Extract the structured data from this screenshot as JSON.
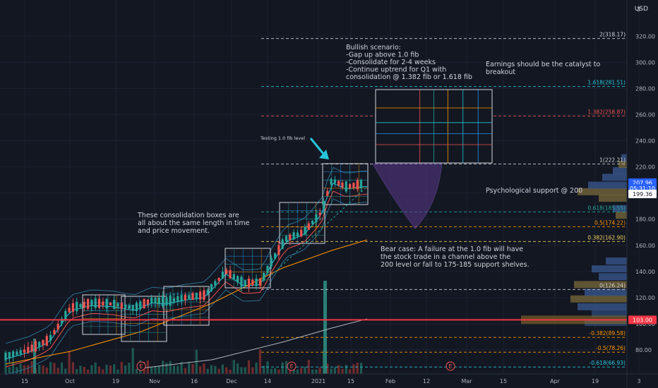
{
  "chart_data": {
    "type": "candlestick",
    "currency": "USD",
    "corner_label": "3",
    "y_ticks": [
      80,
      100,
      120,
      140,
      160,
      180,
      200,
      220,
      240,
      260,
      280,
      300,
      320
    ],
    "x_ticks": [
      "15",
      "Oct",
      "19",
      "Nov",
      "16",
      "Dec",
      "14",
      "2021",
      "15",
      "Feb",
      "12",
      "Mar",
      "15",
      "Apr",
      "19",
      "3"
    ],
    "fib_levels": [
      {
        "label": "2(318.17)",
        "value": 318.17,
        "color": "#d1d4dc"
      },
      {
        "label": "1.618(281.51)",
        "value": 281.51,
        "color": "#26c6da"
      },
      {
        "label": "1.382(258.87)",
        "value": 258.87,
        "color": "#ef5350"
      },
      {
        "label": "1(222.21)",
        "value": 222.21,
        "color": "#d1d4dc"
      },
      {
        "label": "0.618(185.55)",
        "value": 185.55,
        "color": "#26a69a"
      },
      {
        "label": "0.5(174.22)",
        "value": 174.22,
        "color": "#ff9800"
      },
      {
        "label": "0.382(162.90)",
        "value": 162.9,
        "color": "#f0d060"
      },
      {
        "label": "0(126.24)",
        "value": 126.24,
        "color": "#d1d4dc"
      },
      {
        "label": "-0.382(89.58)",
        "value": 89.58,
        "color": "#ff9800"
      },
      {
        "label": "-0.5(78.26)",
        "value": 78.26,
        "color": "#ff9800"
      },
      {
        "label": "-0.618(66.93)",
        "value": 66.93,
        "color": "#26c6da"
      }
    ],
    "price_labels": [
      {
        "text": "207.96",
        "value": 207.96,
        "bg": "#2962ff"
      },
      {
        "text": "05:31:10",
        "value": 203.5,
        "bg": "#2962ff"
      },
      {
        "text": "199.36",
        "value": 199.36,
        "bg": "#ffffff"
      },
      {
        "text": "103.00",
        "value": 103.0,
        "bg": "#f23645"
      }
    ],
    "horizontal_line": {
      "value": 103.0,
      "color": "#f23645"
    },
    "annotations": [
      {
        "id": "bull",
        "lines": [
          "Bullish scenario:",
          "-Gap up above 1.0 fib",
          "-Consolidate for 2-4 weeks",
          "-Continue uptrend for Q1 with",
          "consolidation @ 1.382 fib or 1.618 fib"
        ]
      },
      {
        "id": "earnings",
        "lines": [
          "Earnings should be the catalyst to",
          "breakout"
        ]
      },
      {
        "id": "testing",
        "lines": [
          "Testing 1.0 fib level"
        ]
      },
      {
        "id": "support",
        "lines": [
          "Psychological support @ 200"
        ]
      },
      {
        "id": "boxes",
        "lines": [
          "These consolidation boxes are",
          "all about the same length in time",
          "and price movement."
        ]
      },
      {
        "id": "bear",
        "lines": [
          "Bear case: A failure at the 1.0 fib will have",
          "the stock trade in a channel above the",
          "200 level or fall to 175-185 support shelves."
        ]
      }
    ],
    "earnings_markers": [
      "E",
      "E",
      "E"
    ]
  },
  "colors": {
    "background": "#131722",
    "grid": "#1e2230",
    "up": "#26a69a",
    "down": "#ef5350",
    "text": "#d1d4dc"
  }
}
